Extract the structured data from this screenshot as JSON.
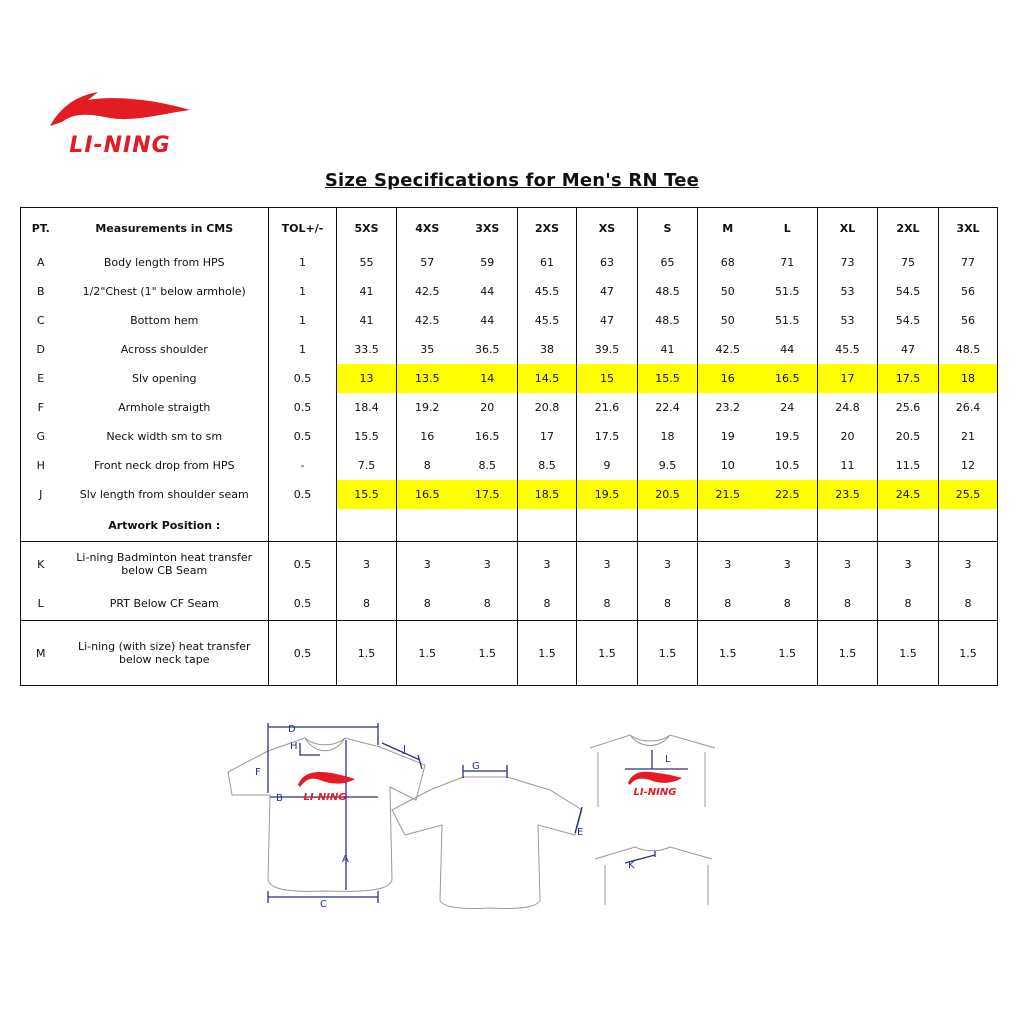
{
  "brand": {
    "logo_text": "LI-NING",
    "color": "#e31b23"
  },
  "title": "Size Specifications for Men's RN Tee",
  "table": {
    "headers": [
      "PT.",
      "Measurements in CMS",
      "TOL+/-",
      "5XS",
      "4XS",
      "3XS",
      "2XS",
      "XS",
      "S",
      "M",
      "L",
      "XL",
      "2XL",
      "3XL"
    ],
    "highlight_color": "#ffff00",
    "rows": [
      {
        "pt": "A",
        "desc": "Body length from HPS",
        "tol": "1",
        "values": [
          "55",
          "57",
          "59",
          "61",
          "63",
          "65",
          "68",
          "71",
          "73",
          "75",
          "77"
        ]
      },
      {
        "pt": "B",
        "desc": "1/2\"Chest (1\" below armhole)",
        "tol": "1",
        "values": [
          "41",
          "42.5",
          "44",
          "45.5",
          "47",
          "48.5",
          "50",
          "51.5",
          "53",
          "54.5",
          "56"
        ]
      },
      {
        "pt": "C",
        "desc": "Bottom hem",
        "tol": "1",
        "values": [
          "41",
          "42.5",
          "44",
          "45.5",
          "47",
          "48.5",
          "50",
          "51.5",
          "53",
          "54.5",
          "56"
        ]
      },
      {
        "pt": "D",
        "desc": "Across shoulder",
        "tol": "1",
        "values": [
          "33.5",
          "35",
          "36.5",
          "38",
          "39.5",
          "41",
          "42.5",
          "44",
          "45.5",
          "47",
          "48.5"
        ]
      },
      {
        "pt": "E",
        "desc": "Slv opening",
        "tol": "0.5",
        "highlight": true,
        "values": [
          "13",
          "13.5",
          "14",
          "14.5",
          "15",
          "15.5",
          "16",
          "16.5",
          "17",
          "17.5",
          "18"
        ]
      },
      {
        "pt": "F",
        "desc": "Armhole straigth",
        "tol": "0.5",
        "values": [
          "18.4",
          "19.2",
          "20",
          "20.8",
          "21.6",
          "22.4",
          "23.2",
          "24",
          "24.8",
          "25.6",
          "26.4"
        ]
      },
      {
        "pt": "G",
        "desc": "Neck width  sm to sm",
        "tol": "0.5",
        "values": [
          "15.5",
          "16",
          "16.5",
          "17",
          "17.5",
          "18",
          "19",
          "19.5",
          "20",
          "20.5",
          "21"
        ]
      },
      {
        "pt": "H",
        "desc": "Front neck drop from HPS",
        "tol": "-",
        "values": [
          "7.5",
          "8",
          "8.5",
          "8.5",
          "9",
          "9.5",
          "10",
          "10.5",
          "11",
          "11.5",
          "12"
        ]
      },
      {
        "pt": "J",
        "desc": "Slv length from shoulder seam",
        "tol": "0.5",
        "highlight": true,
        "values": [
          "15.5",
          "16.5",
          "17.5",
          "18.5",
          "19.5",
          "20.5",
          "21.5",
          "22.5",
          "23.5",
          "24.5",
          "25.5"
        ]
      }
    ],
    "artwork_label": "Artwork Position :",
    "artwork_rows": [
      {
        "pt": "K",
        "desc": "Li-ning Badminton heat transfer below CB Seam",
        "tol": "0.5",
        "values": [
          "3",
          "3",
          "3",
          "3",
          "3",
          "3",
          "3",
          "3",
          "3",
          "3",
          "3"
        ]
      },
      {
        "pt": "L",
        "desc": "PRT Below CF Seam",
        "tol": "0.5",
        "values": [
          "8",
          "8",
          "8",
          "8",
          "8",
          "8",
          "8",
          "8",
          "8",
          "8",
          "8"
        ]
      },
      {
        "pt": "M",
        "desc": "Li-ning (with size) heat transfer below neck tape",
        "tol": "0.5",
        "values": [
          "1.5",
          "1.5",
          "1.5",
          "1.5",
          "1.5",
          "1.5",
          "1.5",
          "1.5",
          "1.5",
          "1.5",
          "1.5"
        ]
      }
    ]
  },
  "diagram": {
    "line_color": "#2b2f8a",
    "labels": {
      "a": "A",
      "b": "B",
      "c": "C",
      "d": "D",
      "e": "E",
      "f": "F",
      "g": "G",
      "h": "H",
      "j": "J",
      "k": "K",
      "l": "L"
    },
    "print_text": "LI-NING"
  }
}
